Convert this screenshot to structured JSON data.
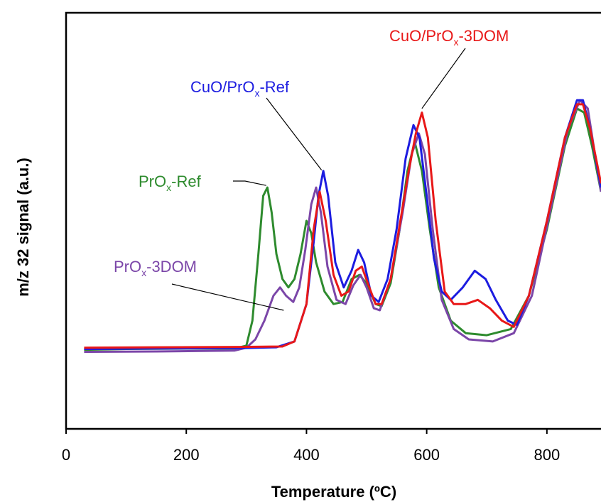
{
  "chart_data": {
    "type": "line",
    "xlabel": "Temperature (ºC)",
    "ylabel": "m/z 32 signal (a.u.)",
    "xlim": [
      0,
      890
    ],
    "ylim": [
      0,
      1
    ],
    "x_ticks": [
      "0",
      "200",
      "400",
      "600",
      "800"
    ],
    "y_ticks_shown": false,
    "grid": false,
    "legend": "none (curves labeled by callout annotations)",
    "series": [
      {
        "name": "PrOx-Ref",
        "label_parts": [
          "PrO",
          "x",
          "-Ref"
        ],
        "color": "#2e8b2e",
        "points": [
          [
            30,
            0.19
          ],
          [
            100,
            0.192
          ],
          [
            200,
            0.193
          ],
          [
            280,
            0.193
          ],
          [
            300,
            0.2
          ],
          [
            310,
            0.26
          ],
          [
            320,
            0.42
          ],
          [
            328,
            0.56
          ],
          [
            335,
            0.58
          ],
          [
            342,
            0.52
          ],
          [
            350,
            0.42
          ],
          [
            360,
            0.36
          ],
          [
            370,
            0.34
          ],
          [
            380,
            0.36
          ],
          [
            390,
            0.42
          ],
          [
            400,
            0.5
          ],
          [
            408,
            0.47
          ],
          [
            416,
            0.4
          ],
          [
            430,
            0.33
          ],
          [
            445,
            0.3
          ],
          [
            460,
            0.305
          ],
          [
            475,
            0.36
          ],
          [
            488,
            0.37
          ],
          [
            500,
            0.35
          ],
          [
            515,
            0.3
          ],
          [
            525,
            0.295
          ],
          [
            540,
            0.35
          ],
          [
            555,
            0.48
          ],
          [
            568,
            0.62
          ],
          [
            580,
            0.69
          ],
          [
            592,
            0.62
          ],
          [
            605,
            0.48
          ],
          [
            620,
            0.34
          ],
          [
            640,
            0.26
          ],
          [
            665,
            0.23
          ],
          [
            700,
            0.225
          ],
          [
            740,
            0.24
          ],
          [
            770,
            0.32
          ],
          [
            800,
            0.48
          ],
          [
            830,
            0.68
          ],
          [
            850,
            0.77
          ],
          [
            862,
            0.76
          ],
          [
            875,
            0.68
          ],
          [
            890,
            0.57
          ]
        ]
      },
      {
        "name": "PrOx-3DOM",
        "label_parts": [
          "PrO",
          "x",
          "-3DOM"
        ],
        "color": "#7b46a8",
        "points": [
          [
            30,
            0.185
          ],
          [
            150,
            0.186
          ],
          [
            280,
            0.188
          ],
          [
            300,
            0.195
          ],
          [
            315,
            0.215
          ],
          [
            330,
            0.26
          ],
          [
            345,
            0.32
          ],
          [
            356,
            0.34
          ],
          [
            366,
            0.32
          ],
          [
            378,
            0.305
          ],
          [
            388,
            0.34
          ],
          [
            398,
            0.43
          ],
          [
            408,
            0.54
          ],
          [
            416,
            0.58
          ],
          [
            424,
            0.52
          ],
          [
            435,
            0.39
          ],
          [
            450,
            0.31
          ],
          [
            465,
            0.3
          ],
          [
            478,
            0.345
          ],
          [
            490,
            0.37
          ],
          [
            500,
            0.34
          ],
          [
            512,
            0.29
          ],
          [
            522,
            0.285
          ],
          [
            540,
            0.36
          ],
          [
            560,
            0.52
          ],
          [
            575,
            0.66
          ],
          [
            587,
            0.71
          ],
          [
            597,
            0.66
          ],
          [
            610,
            0.48
          ],
          [
            625,
            0.31
          ],
          [
            645,
            0.24
          ],
          [
            670,
            0.215
          ],
          [
            710,
            0.21
          ],
          [
            745,
            0.23
          ],
          [
            775,
            0.32
          ],
          [
            805,
            0.52
          ],
          [
            835,
            0.72
          ],
          [
            855,
            0.79
          ],
          [
            868,
            0.77
          ],
          [
            880,
            0.66
          ],
          [
            890,
            0.57
          ]
        ]
      },
      {
        "name": "CuO/PrOx-Ref",
        "label_parts": [
          "CuO/PrO",
          "x",
          "-Ref"
        ],
        "color": "#1c1ce0",
        "points": [
          [
            30,
            0.192
          ],
          [
            150,
            0.193
          ],
          [
            290,
            0.194
          ],
          [
            350,
            0.196
          ],
          [
            380,
            0.21
          ],
          [
            400,
            0.3
          ],
          [
            412,
            0.45
          ],
          [
            420,
            0.56
          ],
          [
            428,
            0.62
          ],
          [
            436,
            0.56
          ],
          [
            448,
            0.4
          ],
          [
            462,
            0.34
          ],
          [
            475,
            0.38
          ],
          [
            486,
            0.43
          ],
          [
            496,
            0.4
          ],
          [
            508,
            0.32
          ],
          [
            520,
            0.305
          ],
          [
            535,
            0.36
          ],
          [
            550,
            0.48
          ],
          [
            565,
            0.65
          ],
          [
            578,
            0.73
          ],
          [
            588,
            0.7
          ],
          [
            600,
            0.56
          ],
          [
            612,
            0.41
          ],
          [
            625,
            0.33
          ],
          [
            640,
            0.31
          ],
          [
            660,
            0.34
          ],
          [
            680,
            0.38
          ],
          [
            698,
            0.36
          ],
          [
            715,
            0.31
          ],
          [
            735,
            0.26
          ],
          [
            750,
            0.25
          ],
          [
            770,
            0.32
          ],
          [
            800,
            0.5
          ],
          [
            830,
            0.7
          ],
          [
            850,
            0.79
          ],
          [
            860,
            0.79
          ],
          [
            872,
            0.72
          ],
          [
            890,
            0.58
          ]
        ]
      },
      {
        "name": "CuO/PrOx-3DOM",
        "label_parts": [
          "CuO/PrO",
          "x",
          "-3DOM"
        ],
        "color": "#e81818",
        "points": [
          [
            30,
            0.195
          ],
          [
            150,
            0.196
          ],
          [
            290,
            0.197
          ],
          [
            360,
            0.198
          ],
          [
            380,
            0.21
          ],
          [
            400,
            0.3
          ],
          [
            412,
            0.48
          ],
          [
            422,
            0.57
          ],
          [
            432,
            0.5
          ],
          [
            445,
            0.37
          ],
          [
            458,
            0.32
          ],
          [
            470,
            0.33
          ],
          [
            482,
            0.38
          ],
          [
            492,
            0.39
          ],
          [
            502,
            0.35
          ],
          [
            515,
            0.3
          ],
          [
            525,
            0.3
          ],
          [
            540,
            0.36
          ],
          [
            555,
            0.49
          ],
          [
            570,
            0.62
          ],
          [
            582,
            0.71
          ],
          [
            592,
            0.76
          ],
          [
            602,
            0.7
          ],
          [
            615,
            0.5
          ],
          [
            630,
            0.33
          ],
          [
            645,
            0.3
          ],
          [
            665,
            0.3
          ],
          [
            685,
            0.31
          ],
          [
            705,
            0.29
          ],
          [
            725,
            0.26
          ],
          [
            745,
            0.245
          ],
          [
            770,
            0.32
          ],
          [
            800,
            0.5
          ],
          [
            830,
            0.7
          ],
          [
            850,
            0.78
          ],
          [
            860,
            0.78
          ],
          [
            872,
            0.72
          ],
          [
            890,
            0.59
          ]
        ]
      }
    ],
    "annotations": [
      {
        "series": "PrOx-Ref",
        "text_parts": [
          "PrO",
          "x",
          "-Ref"
        ],
        "color": "#2e8b2e",
        "points_to": [
          333,
          0.585
        ]
      },
      {
        "series": "PrOx-3DOM",
        "text_parts": [
          "PrO",
          "x",
          "-3DOM"
        ],
        "color": "#7b46a8",
        "points_to": [
          362,
          0.285
        ]
      },
      {
        "series": "CuO/PrOx-Ref",
        "text_parts": [
          "CuO/PrO",
          "x",
          "-Ref"
        ],
        "color": "#1c1ce0",
        "points_to": [
          425,
          0.622
        ]
      },
      {
        "series": "CuO/PrOx-3DOM",
        "text_parts": [
          "CuO/PrO",
          "x",
          "-3DOM"
        ],
        "color": "#e81818",
        "points_to": [
          592,
          0.77
        ]
      }
    ]
  }
}
